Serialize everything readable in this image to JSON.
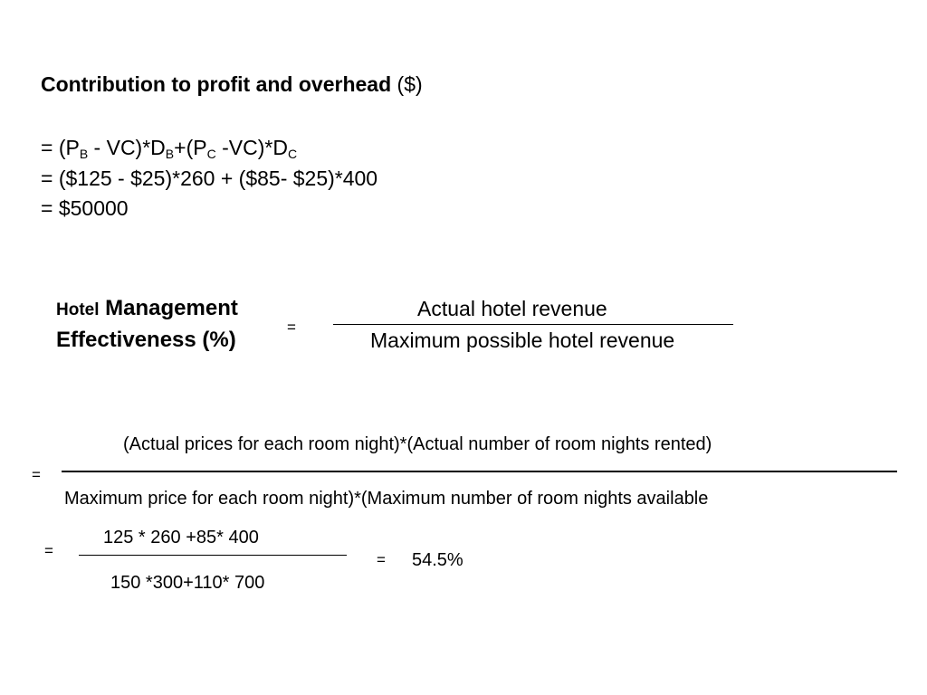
{
  "contribution": {
    "title_bold": "Contribution to profit and overhead",
    "title_rest": " ($)",
    "formula": {
      "p1": "= (P",
      "s1": "B",
      "p2": " - VC)*D",
      "s2": "B",
      "p3": "+(P",
      "s3": "C",
      "p4": " -VC)*D",
      "s4": "C"
    },
    "substitution": "= ($125 - $25)*260  + ($85- $25)*400",
    "result": "= $50000"
  },
  "hme": {
    "label_small": "Hotel",
    "label_large": " Management",
    "label_line2": "Effectiveness (%)",
    "equals": "=",
    "numerator": "Actual hotel revenue",
    "denominator": "Maximum possible hotel revenue"
  },
  "expanded": {
    "equals": "=",
    "numerator": "(Actual prices for each room night)*(Actual number of room nights rented)",
    "denominator": "Maximum price for each room night)*(Maximum number of room nights available"
  },
  "numeric": {
    "equals": "=",
    "numerator": "125 * 260 +85* 400",
    "denominator": "150 *300+110* 700",
    "result_equals": "=",
    "result": "54.5%"
  }
}
